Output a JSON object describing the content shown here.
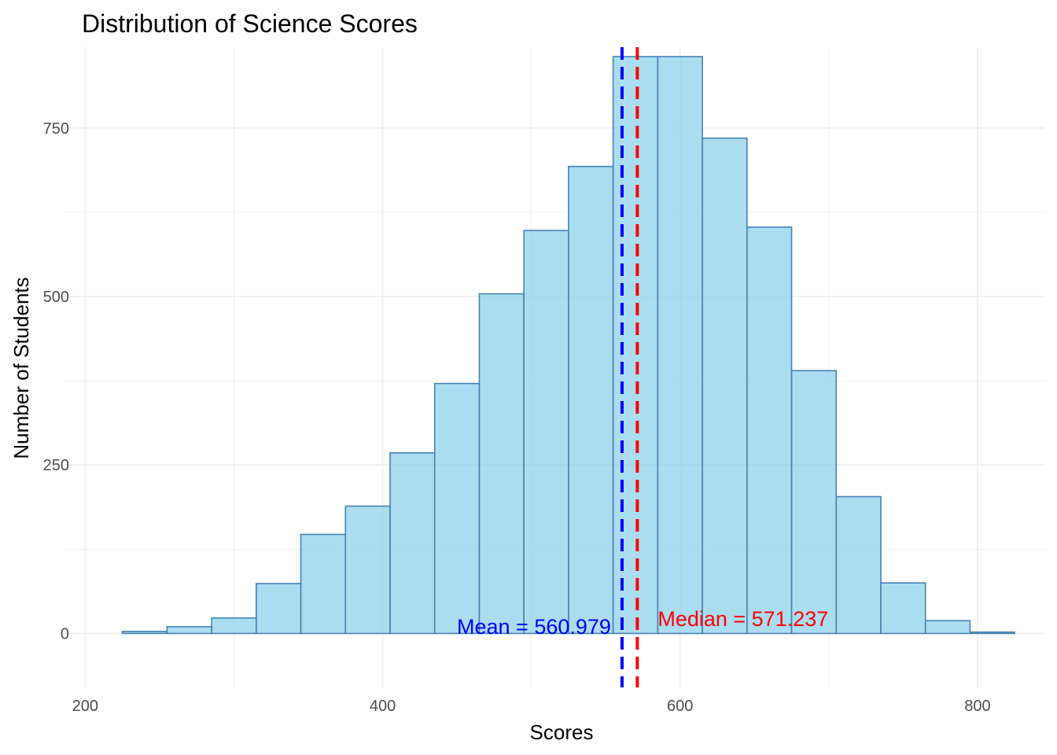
{
  "chart_data": {
    "type": "bar",
    "title": "Distribution of Science Scores",
    "xlabel": "Scores",
    "ylabel": "Number of Students",
    "xlim": [
      185,
      845
    ],
    "ylim": [
      -80,
      870
    ],
    "x_ticks": [
      200,
      400,
      600,
      800
    ],
    "x_tick_labels": [
      "200",
      "400",
      "600",
      "800"
    ],
    "y_ticks": [
      0,
      250,
      500,
      750
    ],
    "y_tick_labels": [
      "0",
      "250",
      "500",
      "750"
    ],
    "grid": true,
    "bin_width": 30,
    "bins": [
      {
        "x0": 225,
        "x1": 255,
        "count": 3
      },
      {
        "x0": 255,
        "x1": 285,
        "count": 10
      },
      {
        "x0": 285,
        "x1": 315,
        "count": 23
      },
      {
        "x0": 315,
        "x1": 345,
        "count": 74
      },
      {
        "x0": 345,
        "x1": 375,
        "count": 147
      },
      {
        "x0": 375,
        "x1": 405,
        "count": 189
      },
      {
        "x0": 405,
        "x1": 435,
        "count": 268
      },
      {
        "x0": 435,
        "x1": 465,
        "count": 371
      },
      {
        "x0": 465,
        "x1": 495,
        "count": 504
      },
      {
        "x0": 495,
        "x1": 525,
        "count": 598
      },
      {
        "x0": 525,
        "x1": 555,
        "count": 693
      },
      {
        "x0": 555,
        "x1": 585,
        "count": 856
      },
      {
        "x0": 585,
        "x1": 615,
        "count": 856
      },
      {
        "x0": 615,
        "x1": 645,
        "count": 735
      },
      {
        "x0": 645,
        "x1": 675,
        "count": 603
      },
      {
        "x0": 675,
        "x1": 705,
        "count": 390
      },
      {
        "x0": 705,
        "x1": 735,
        "count": 203
      },
      {
        "x0": 735,
        "x1": 765,
        "count": 75
      },
      {
        "x0": 765,
        "x1": 795,
        "count": 19
      },
      {
        "x0": 795,
        "x1": 825,
        "count": 2
      }
    ],
    "bar_fill": "#87CEEB",
    "bar_stroke": "#4682B4",
    "reference_lines": [
      {
        "name": "mean",
        "value": 560.979,
        "color": "#0000FF",
        "label": "Mean = 560.979"
      },
      {
        "name": "median",
        "value": 571.237,
        "color": "#FF0000",
        "label": "Median = 571.237"
      }
    ]
  }
}
